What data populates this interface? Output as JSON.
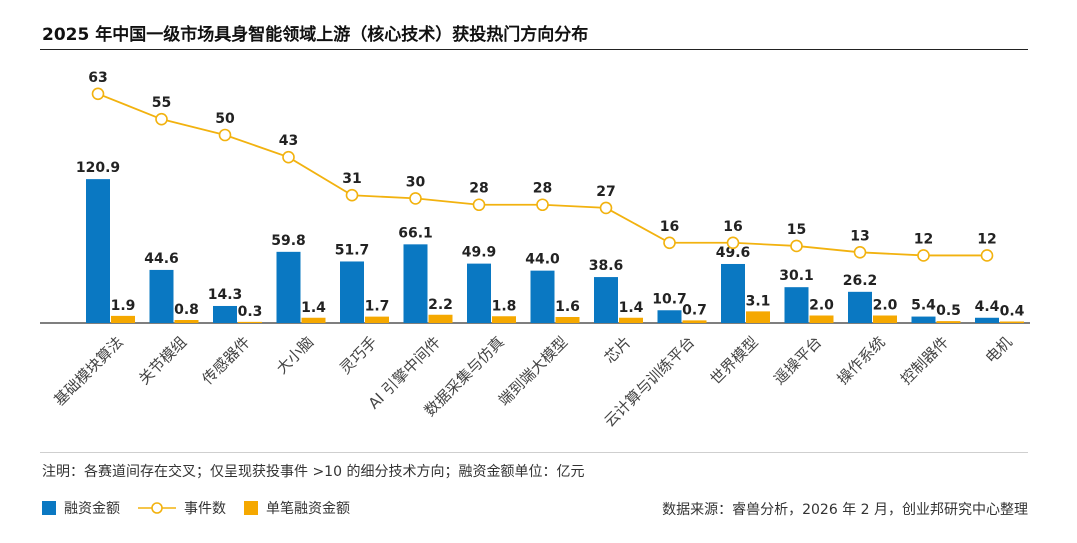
{
  "title": "2025 年中国一级市场具身智能领域上游（核心技术）获投热门方向分布",
  "note": "注明：各赛道间存在交叉；仅呈现获投事件 >10 的细分技术方向；融资金额单位：亿元",
  "source": "数据来源：睿兽分析，2026 年 2 月，创业邦研究中心整理",
  "legend": {
    "financing": "融资金额",
    "events": "事件数",
    "per_deal": "单笔融资金额"
  },
  "colors": {
    "financing": "#0a78c2",
    "per_deal": "#f5a800",
    "events": "#f2b20f"
  },
  "chart_data": {
    "type": "bar",
    "title": "2025 年中国一级市场具身智能领域上游（核心技术）获投热门方向分布",
    "xlabel": "",
    "ylabel": "",
    "categories": [
      "基础模块算法",
      "关节模组",
      "传感器件",
      "大小脑",
      "灵巧手",
      "AI 引擎中间件",
      "数据采集与仿真",
      "端到端大模型",
      "芯片",
      "云计算与训练平台",
      "世界模型",
      "遥操平台",
      "操作系统",
      "控制器件",
      "电机"
    ],
    "series": [
      {
        "name": "融资金额",
        "type": "bar",
        "values": [
          120.9,
          44.6,
          14.3,
          59.8,
          51.7,
          66.1,
          49.9,
          44.0,
          38.6,
          10.7,
          49.6,
          30.1,
          26.2,
          5.4,
          4.4
        ]
      },
      {
        "name": "单笔融资金额",
        "type": "bar",
        "values": [
          1.9,
          0.8,
          0.3,
          1.4,
          1.7,
          2.2,
          1.8,
          1.6,
          1.4,
          0.7,
          3.1,
          2.0,
          2.0,
          0.5,
          0.4
        ]
      },
      {
        "name": "事件数",
        "type": "line",
        "values": [
          63,
          55,
          50,
          43,
          31,
          30,
          28,
          28,
          27,
          16,
          16,
          15,
          13,
          12,
          12
        ]
      }
    ],
    "grid": false,
    "legend_position": "bottom-left"
  }
}
